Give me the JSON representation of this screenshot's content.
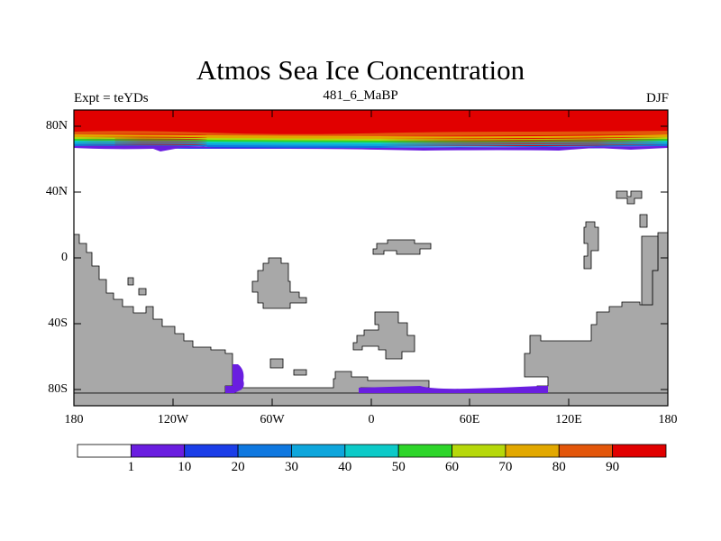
{
  "title": "Atmos Sea Ice Concentration",
  "subtitle_left": "Expt = teYDs",
  "subtitle_center": "481_6_MaBP",
  "subtitle_right": "DJF",
  "lat_labels": [
    "80N",
    "40N",
    "0",
    "40S",
    "80S"
  ],
  "lon_labels": [
    "180",
    "120W",
    "60W",
    "0",
    "60E",
    "120E",
    "180"
  ],
  "colorbar": {
    "labels": [
      "1",
      "10",
      "20",
      "30",
      "40",
      "50",
      "60",
      "70",
      "80",
      "90"
    ],
    "colors": [
      "#ffffff",
      "#6a1ee0",
      "#1b3ee8",
      "#0f78e0",
      "#0ea6dc",
      "#0ccac8",
      "#2ed52a",
      "#b6d80a",
      "#e2a800",
      "#e3560a",
      "#e10000"
    ]
  },
  "colors": {
    "land": "#a8a8a8",
    "ocean": "#ffffff"
  }
}
